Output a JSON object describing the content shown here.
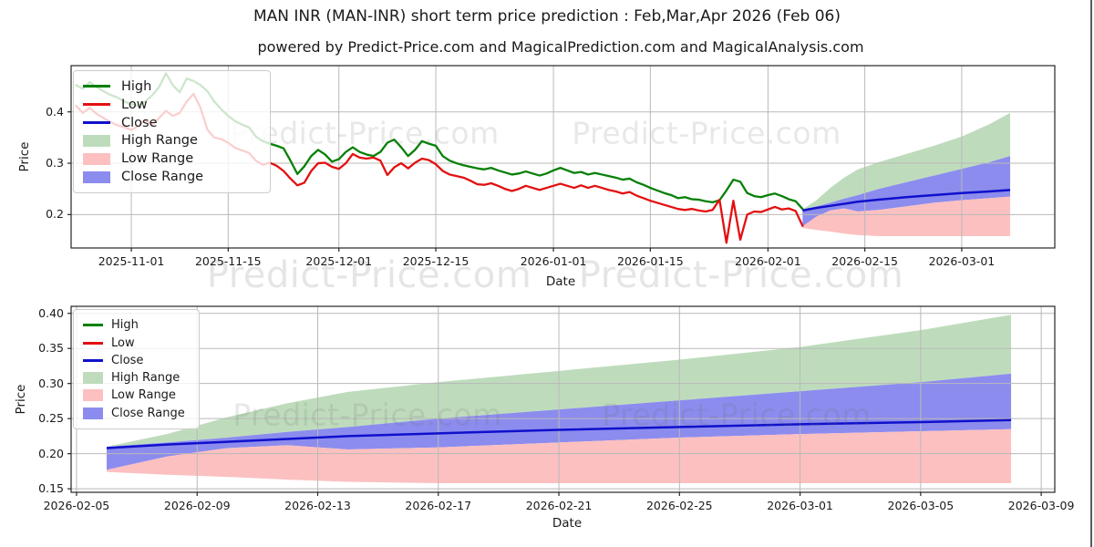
{
  "title": "MAN INR (MAN-INR) short term price prediction : Feb,Mar,Apr 2026 (Feb 06)",
  "subtitle": "powered by Predict-Price.com and MagicalPrediction.com and MagicalAnalysis.com",
  "watermark": {
    "text": "Predict-Price.com"
  },
  "colors": {
    "high": "#068006",
    "low": "#e31010",
    "close": "#1010cc",
    "high_range": "#bedcbc",
    "low_range": "#fcc0c0",
    "close_range": "#8c8cee",
    "grid": "#b9b9b9",
    "spine": "#262626",
    "text": "#1a1a1a",
    "watermark": "#6a6a6a"
  },
  "chart_data": {
    "type": "line",
    "title": "MAN INR (MAN-INR) short term price prediction : Feb,Mar,Apr 2026 (Feb 06)",
    "legend": [
      {
        "label": "High",
        "color_key": "high",
        "kind": "line"
      },
      {
        "label": "Low",
        "color_key": "low",
        "kind": "line"
      },
      {
        "label": "Close",
        "color_key": "close",
        "kind": "line"
      },
      {
        "label": "High Range",
        "color_key": "high_range",
        "kind": "patch"
      },
      {
        "label": "Low Range",
        "color_key": "low_range",
        "kind": "patch"
      },
      {
        "label": "Close Range",
        "color_key": "close_range",
        "kind": "patch"
      }
    ],
    "charts": [
      {
        "name": "history-with-forecast",
        "ylabel": "Price",
        "xlabel": "Date",
        "ylim": [
          0.135,
          0.49
        ],
        "yticks": [
          {
            "value": 0.2,
            "label": "0.2"
          },
          {
            "value": 0.3,
            "label": "0.3"
          },
          {
            "value": 0.4,
            "label": "0.4"
          }
        ],
        "xlim": [
          "2025-10-23",
          "2026-03-14"
        ],
        "xpad": [
          0.3,
          0.45
        ],
        "xticks": [
          {
            "date": "2025-11-01",
            "label": "2025-11-01"
          },
          {
            "date": "2025-11-15",
            "label": "2025-11-15"
          },
          {
            "date": "2025-12-01",
            "label": "2025-12-01"
          },
          {
            "date": "2025-12-15",
            "label": "2025-12-15"
          },
          {
            "date": "2026-01-01",
            "label": "2026-01-01"
          },
          {
            "date": "2026-01-15",
            "label": "2026-01-15"
          },
          {
            "date": "2026-02-01",
            "label": "2026-02-01"
          },
          {
            "date": "2026-02-15",
            "label": "2026-02-15"
          },
          {
            "date": "2026-03-01",
            "label": "2026-03-01"
          }
        ],
        "has_history": true
      },
      {
        "name": "forecast-detail",
        "ylabel": "Price",
        "xlabel": "Date",
        "ylim": [
          0.145,
          0.41
        ],
        "yticks": [
          {
            "value": 0.15,
            "label": "0.15"
          },
          {
            "value": 0.2,
            "label": "0.20"
          },
          {
            "value": 0.25,
            "label": "0.25"
          },
          {
            "value": 0.3,
            "label": "0.30"
          },
          {
            "value": 0.35,
            "label": "0.35"
          },
          {
            "value": 0.4,
            "label": "0.40"
          }
        ],
        "xlim": [
          "2026-02-05",
          "2026-03-09"
        ],
        "xpad": [
          -0.18,
          0.45
        ],
        "xticks": [
          {
            "date": "2026-02-05",
            "label": "2026-02-05"
          },
          {
            "date": "2026-02-09",
            "label": "2026-02-09"
          },
          {
            "date": "2026-02-13",
            "label": "2026-02-13"
          },
          {
            "date": "2026-02-17",
            "label": "2026-02-17"
          },
          {
            "date": "2026-02-21",
            "label": "2026-02-21"
          },
          {
            "date": "2026-02-25",
            "label": "2026-02-25"
          },
          {
            "date": "2026-03-01",
            "label": "2026-03-01"
          },
          {
            "date": "2026-03-05",
            "label": "2026-03-05"
          },
          {
            "date": "2026-03-09",
            "label": "2026-03-09"
          }
        ],
        "has_history": false
      }
    ],
    "history": {
      "start_date": "2025-10-24",
      "high": [
        0.452,
        0.445,
        0.458,
        0.448,
        0.44,
        0.433,
        0.428,
        0.42,
        0.415,
        0.412,
        0.42,
        0.432,
        0.448,
        0.475,
        0.452,
        0.438,
        0.465,
        0.46,
        0.452,
        0.44,
        0.42,
        0.405,
        0.392,
        0.382,
        0.375,
        0.37,
        0.352,
        0.343,
        0.338,
        0.334,
        0.329,
        0.305,
        0.279,
        0.294,
        0.314,
        0.326,
        0.317,
        0.303,
        0.308,
        0.322,
        0.331,
        0.322,
        0.317,
        0.314,
        0.322,
        0.34,
        0.346,
        0.331,
        0.314,
        0.326,
        0.343,
        0.338,
        0.334,
        0.314,
        0.305,
        0.3,
        0.296,
        0.293,
        0.29,
        0.288,
        0.291,
        0.286,
        0.282,
        0.278,
        0.28,
        0.284,
        0.28,
        0.276,
        0.28,
        0.286,
        0.291,
        0.286,
        0.281,
        0.283,
        0.278,
        0.281,
        0.278,
        0.275,
        0.272,
        0.268,
        0.27,
        0.263,
        0.258,
        0.252,
        0.247,
        0.242,
        0.238,
        0.232,
        0.234,
        0.23,
        0.229,
        0.226,
        0.224,
        0.228,
        0.247,
        0.268,
        0.264,
        0.242,
        0.236,
        0.234,
        0.238,
        0.241,
        0.236,
        0.23,
        0.226,
        0.211
      ],
      "low": [
        0.412,
        0.398,
        0.408,
        0.396,
        0.388,
        0.38,
        0.374,
        0.37,
        0.365,
        0.372,
        0.385,
        0.375,
        0.388,
        0.402,
        0.392,
        0.398,
        0.42,
        0.435,
        0.408,
        0.365,
        0.35,
        0.347,
        0.34,
        0.33,
        0.325,
        0.32,
        0.305,
        0.297,
        0.301,
        0.295,
        0.285,
        0.27,
        0.257,
        0.262,
        0.285,
        0.3,
        0.301,
        0.293,
        0.289,
        0.3,
        0.318,
        0.311,
        0.309,
        0.311,
        0.305,
        0.277,
        0.292,
        0.3,
        0.29,
        0.301,
        0.309,
        0.306,
        0.298,
        0.285,
        0.278,
        0.275,
        0.272,
        0.266,
        0.259,
        0.258,
        0.261,
        0.256,
        0.25,
        0.246,
        0.25,
        0.256,
        0.252,
        0.248,
        0.252,
        0.256,
        0.26,
        0.256,
        0.252,
        0.257,
        0.252,
        0.256,
        0.252,
        0.248,
        0.245,
        0.241,
        0.244,
        0.237,
        0.232,
        0.227,
        0.223,
        0.219,
        0.215,
        0.211,
        0.209,
        0.211,
        0.208,
        0.206,
        0.209,
        0.229,
        0.145,
        0.227,
        0.151,
        0.2,
        0.206,
        0.205,
        0.21,
        0.215,
        0.21,
        0.212,
        0.207,
        0.178
      ]
    },
    "prediction": {
      "dates": [
        "2026-02-06",
        "2026-02-08",
        "2026-02-10",
        "2026-02-12",
        "2026-02-14",
        "2026-02-17",
        "2026-02-21",
        "2026-02-25",
        "2026-03-01",
        "2026-03-05",
        "2026-03-08"
      ],
      "close": [
        0.208,
        0.213,
        0.217,
        0.221,
        0.225,
        0.229,
        0.234,
        0.238,
        0.242,
        0.245,
        0.248
      ],
      "high_range_upper": [
        0.21,
        0.228,
        0.252,
        0.272,
        0.288,
        0.302,
        0.318,
        0.334,
        0.352,
        0.376,
        0.398
      ],
      "close_range_upper": [
        0.21,
        0.216,
        0.223,
        0.231,
        0.238,
        0.25,
        0.263,
        0.276,
        0.289,
        0.302,
        0.314
      ],
      "low_range_upper": [
        0.177,
        0.196,
        0.208,
        0.212,
        0.206,
        0.209,
        0.216,
        0.223,
        0.228,
        0.232,
        0.235
      ],
      "low_range_lower": [
        0.174,
        0.17,
        0.167,
        0.163,
        0.16,
        0.158,
        0.158,
        0.158,
        0.158,
        0.158,
        0.158
      ]
    }
  }
}
